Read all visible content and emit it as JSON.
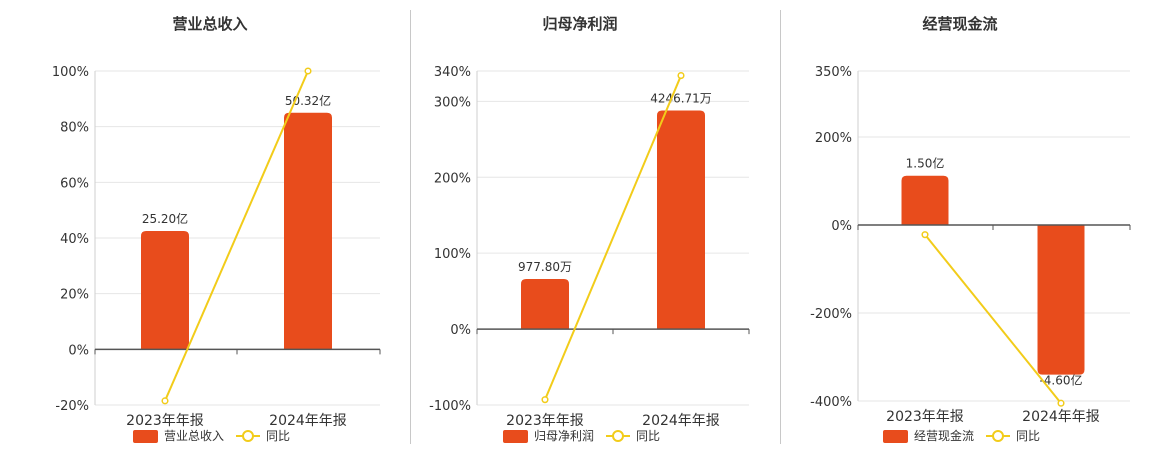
{
  "chart_data": [
    {
      "type": "bar",
      "title": "营业总收入",
      "categories": [
        "2023年年报",
        "2024年年报"
      ],
      "series": [
        {
          "name": "营业总收入",
          "type": "bar",
          "axis_values": [
            42.5,
            85
          ],
          "labels": [
            "25.20亿",
            "50.32亿"
          ]
        },
        {
          "name": "同比",
          "type": "line",
          "values": [
            -18.5,
            100
          ]
        }
      ],
      "yticks": [
        "100%",
        "80%",
        "60%",
        "40%",
        "20%",
        "0%",
        "-20%"
      ],
      "ylim": [
        -20,
        100
      ],
      "grid": true,
      "legend": "bottom",
      "colors": {
        "bar": "#e84c1c",
        "line": "#f2cc1a",
        "grid": "#e6e6e6",
        "axis": "#555555"
      }
    },
    {
      "type": "bar",
      "title": "归母净利润",
      "categories": [
        "2023年年报",
        "2024年年报"
      ],
      "series": [
        {
          "name": "归母净利润",
          "type": "bar",
          "axis_values": [
            66,
            288
          ],
          "labels": [
            "977.80万",
            "4246.71万"
          ]
        },
        {
          "name": "同比",
          "type": "line",
          "values": [
            -93,
            334
          ]
        }
      ],
      "yticks": [
        "340%",
        "300%",
        "200%",
        "100%",
        "0%",
        "-100%"
      ],
      "ylim": [
        -100,
        340
      ],
      "grid": true,
      "legend": "bottom",
      "colors": {
        "bar": "#e84c1c",
        "line": "#f2cc1a",
        "grid": "#e6e6e6",
        "axis": "#555555"
      }
    },
    {
      "type": "bar",
      "title": "经营现金流",
      "categories": [
        "2023年年报",
        "2024年年报"
      ],
      "series": [
        {
          "name": "经营现金流",
          "type": "bar",
          "axis_values": [
            112,
            -340
          ],
          "labels": [
            "1.50亿",
            "-4.60亿"
          ]
        },
        {
          "name": "同比",
          "type": "line",
          "values": [
            -22,
            -405
          ]
        }
      ],
      "yticks": [
        "350%",
        "200%",
        "0%",
        "-200%",
        "-400%"
      ],
      "ylim": [
        -400,
        350
      ],
      "grid": true,
      "legend": "bottom",
      "colors": {
        "bar": "#e84c1c",
        "line": "#f2cc1a",
        "grid": "#e6e6e6",
        "axis": "#555555"
      }
    }
  ]
}
